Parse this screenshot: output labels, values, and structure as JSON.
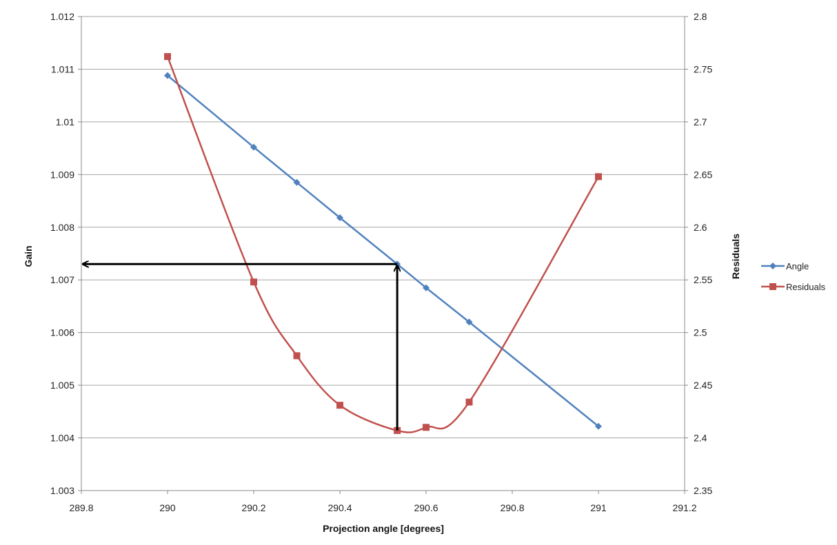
{
  "chart_data": {
    "type": "line",
    "xlabel": "Projection angle [degrees]",
    "ylabel": "Gain",
    "y2label": "Residuals",
    "xlim": [
      289.8,
      291.2
    ],
    "ylim": [
      1.003,
      1.012
    ],
    "y2lim": [
      2.35,
      2.8
    ],
    "x_ticks": [
      "289.8",
      "290",
      "290.2",
      "290.4",
      "290.6",
      "290.8",
      "291",
      "291.2"
    ],
    "y_ticks": [
      "1.003",
      "1.004",
      "1.005",
      "1.006",
      "1.007",
      "1.008",
      "1.009",
      "1.01",
      "1.011",
      "1.012"
    ],
    "y2_ticks": [
      "2.35",
      "2.4",
      "2.45",
      "2.5",
      "2.55",
      "2.6",
      "2.65",
      "2.7",
      "2.75",
      "2.8"
    ],
    "grid": true,
    "legend_position": "right",
    "series": [
      {
        "name": "Angle",
        "axis": "left",
        "marker": "diamond",
        "color": "#4f81bd",
        "smooth": false,
        "x": [
          290.0,
          290.2,
          290.3,
          290.4,
          290.533,
          290.6,
          290.7,
          291.0
        ],
        "y": [
          1.01088,
          1.00952,
          1.00885,
          1.00818,
          1.0073,
          1.00685,
          1.0062,
          1.00422
        ]
      },
      {
        "name": "Residuals",
        "axis": "right",
        "marker": "square",
        "color": "#c0504d",
        "smooth": true,
        "x": [
          290.0,
          290.2,
          290.3,
          290.4,
          290.533,
          290.6,
          290.7,
          291.0
        ],
        "y": [
          2.762,
          2.548,
          2.478,
          2.431,
          2.407,
          2.41,
          2.434,
          2.648
        ]
      }
    ],
    "annotations": [
      {
        "type": "arrow",
        "from": [
          290.533,
          2.407
        ],
        "to": [
          290.533,
          1.0073
        ],
        "axis": "mixed"
      },
      {
        "type": "arrow",
        "from": [
          290.533,
          1.0073
        ],
        "to": [
          289.8,
          1.0073
        ]
      }
    ]
  }
}
